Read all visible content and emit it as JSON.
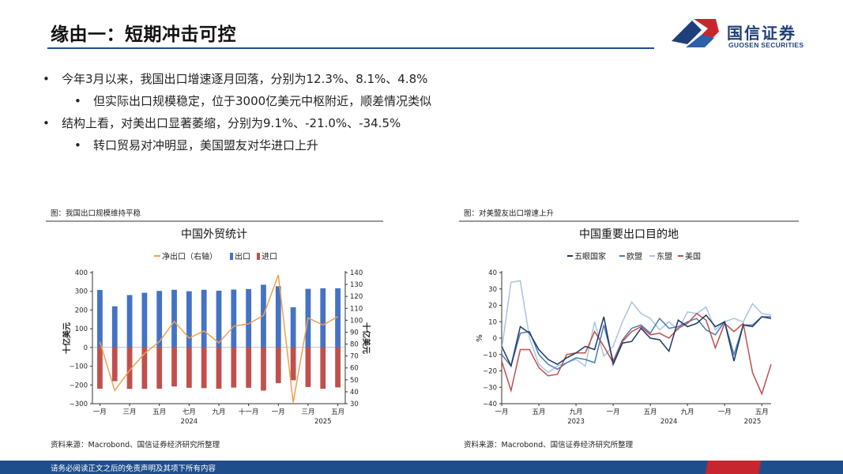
{
  "page": {
    "title": "缘由一：短期冲击可控",
    "logo_cn": "国信证券",
    "logo_en": "GUOSEN SECURITIES",
    "footer": "请务必阅读正文之后的免责声明及其项下所有内容"
  },
  "bullets": [
    {
      "level": 1,
      "text": "今年3月以来，我国出口增速逐月回落，分别为12.3%、8.1%、4.8%"
    },
    {
      "level": 2,
      "text": "但实际出口规模稳定，位于3000亿美元中枢附近，顺差情况类似"
    },
    {
      "level": 1,
      "text": "结构上看，对美出口显著萎缩，分别为9.1%、-21.0%、-34.5%"
    },
    {
      "level": 2,
      "text": "转口贸易对冲明显，美国盟友对华进口上升"
    }
  ],
  "left": {
    "caption": "图：我国出口规模维持平稳",
    "source": "资料来源：Macrobond、国信证券经济研究所整理"
  },
  "right": {
    "caption": "图：对美盟友出口增速上升",
    "source": "资料来源：Macrobond、国信证券经济研究所整理"
  },
  "chart_data": [
    {
      "type": "bar",
      "title": "中国外贸统计",
      "ylabel": "十亿美元",
      "y2label": "十亿美元",
      "ylim": [
        -300,
        400
      ],
      "yticks": [
        -300,
        -200,
        -100,
        0,
        100,
        200,
        300,
        400
      ],
      "y2lim": [
        30,
        140
      ],
      "y2ticks": [
        30,
        40,
        50,
        60,
        70,
        80,
        90,
        100,
        110,
        120,
        130,
        140
      ],
      "legend_position": "top",
      "xtick_labels": [
        "一月",
        "三月",
        "五月",
        "七月",
        "九月",
        "十一月",
        "一月",
        "三月",
        "五月"
      ],
      "xtick_index": [
        0,
        2,
        4,
        6,
        8,
        10,
        12,
        14,
        16
      ],
      "year_labels": [
        {
          "label": "2024",
          "index": 6
        },
        {
          "label": "2025",
          "index": 15
        }
      ],
      "categories": [
        "2024-01",
        "2024-02",
        "2024-03",
        "2024-04",
        "2024-05",
        "2024-06",
        "2024-07",
        "2024-08",
        "2024-09",
        "2024-10",
        "2024-11",
        "2024-12",
        "2025-01",
        "2025-02",
        "2025-03",
        "2025-04",
        "2025-05"
      ],
      "series": [
        {
          "name": "净出口（右轴）",
          "kind": "line",
          "axis": "right",
          "color": "#f0a050",
          "values": [
            82,
            41,
            58,
            72,
            82,
            99,
            85,
            91,
            81,
            95,
            97,
            104,
            138,
            31,
            102,
            96,
            103
          ]
        },
        {
          "name": "出口",
          "kind": "bar",
          "axis": "left",
          "color": "#4472c4",
          "values": [
            307,
            220,
            280,
            292,
            302,
            308,
            300,
            308,
            303,
            309,
            312,
            335,
            327,
            215,
            313,
            316,
            316
          ]
        },
        {
          "name": "进口",
          "kind": "bar",
          "axis": "left",
          "color": "#c0504d",
          "values": [
            -220,
            -180,
            -221,
            -221,
            -220,
            -208,
            -215,
            -217,
            -220,
            -214,
            -215,
            -230,
            -190,
            -175,
            -211,
            -220,
            -213
          ]
        }
      ]
    },
    {
      "type": "line",
      "title": "中国重要出口目的地",
      "ylabel": "%",
      "ylim": [
        -40,
        40
      ],
      "yticks": [
        -40,
        -30,
        -20,
        -10,
        0,
        10,
        20,
        30,
        40
      ],
      "legend_position": "top",
      "xtick_labels": [
        "一月",
        "五月",
        "九月",
        "一月",
        "五月",
        "九月",
        "一月",
        "五月"
      ],
      "xtick_index": [
        0,
        4,
        8,
        12,
        16,
        20,
        24,
        28
      ],
      "year_labels": [
        {
          "label": "2023",
          "index": 8
        },
        {
          "label": "2024",
          "index": 18
        },
        {
          "label": "2025",
          "index": 27
        }
      ],
      "categories": [
        "2023-01",
        "2023-02",
        "2023-03",
        "2023-04",
        "2023-05",
        "2023-06",
        "2023-07",
        "2023-08",
        "2023-09",
        "2023-10",
        "2023-11",
        "2023-12",
        "2024-01",
        "2024-02",
        "2024-03",
        "2024-04",
        "2024-05",
        "2024-06",
        "2024-07",
        "2024-08",
        "2024-09",
        "2024-10",
        "2024-11",
        "2024-12",
        "2025-01",
        "2025-02",
        "2025-03",
        "2025-04",
        "2025-05",
        "2025-06"
      ],
      "series": [
        {
          "name": "五眼国家",
          "color": "#1f3864",
          "values": [
            -5,
            -17,
            7,
            3,
            -7,
            -13,
            -16,
            -12,
            -9,
            -5,
            -7,
            13,
            -16,
            -3,
            -2,
            6,
            0,
            -1,
            -8,
            11,
            7,
            9,
            14,
            7,
            10,
            -14,
            8,
            7,
            13,
            12
          ]
        },
        {
          "name": "欧盟",
          "color": "#4a7ab8",
          "values": [
            -10,
            -17,
            3,
            4,
            -10,
            -16,
            -19,
            -15,
            -12,
            -13,
            -15,
            8,
            -14,
            -1,
            6,
            8,
            3,
            12,
            6,
            7,
            10,
            12,
            5,
            2,
            10,
            -10,
            8,
            8,
            13,
            13
          ]
        },
        {
          "name": "东盟",
          "color": "#a8c4e0",
          "values": [
            -7,
            34,
            35,
            0,
            -16,
            -21,
            -17,
            -15,
            -13,
            -17,
            10,
            -11,
            -5,
            10,
            22,
            15,
            12,
            5,
            10,
            5,
            16,
            15,
            19,
            5,
            10,
            12,
            10,
            21,
            15,
            14
          ]
        },
        {
          "name": "美国",
          "color": "#c0504d",
          "values": [
            -14,
            -32,
            -7,
            -7,
            -18,
            -23,
            -22,
            -10,
            -9,
            -9,
            4,
            -5,
            -15,
            -2,
            4,
            7,
            2,
            3,
            0,
            6,
            9,
            15,
            11,
            -6,
            9,
            4,
            9,
            -21,
            -34,
            -16
          ]
        }
      ]
    }
  ]
}
